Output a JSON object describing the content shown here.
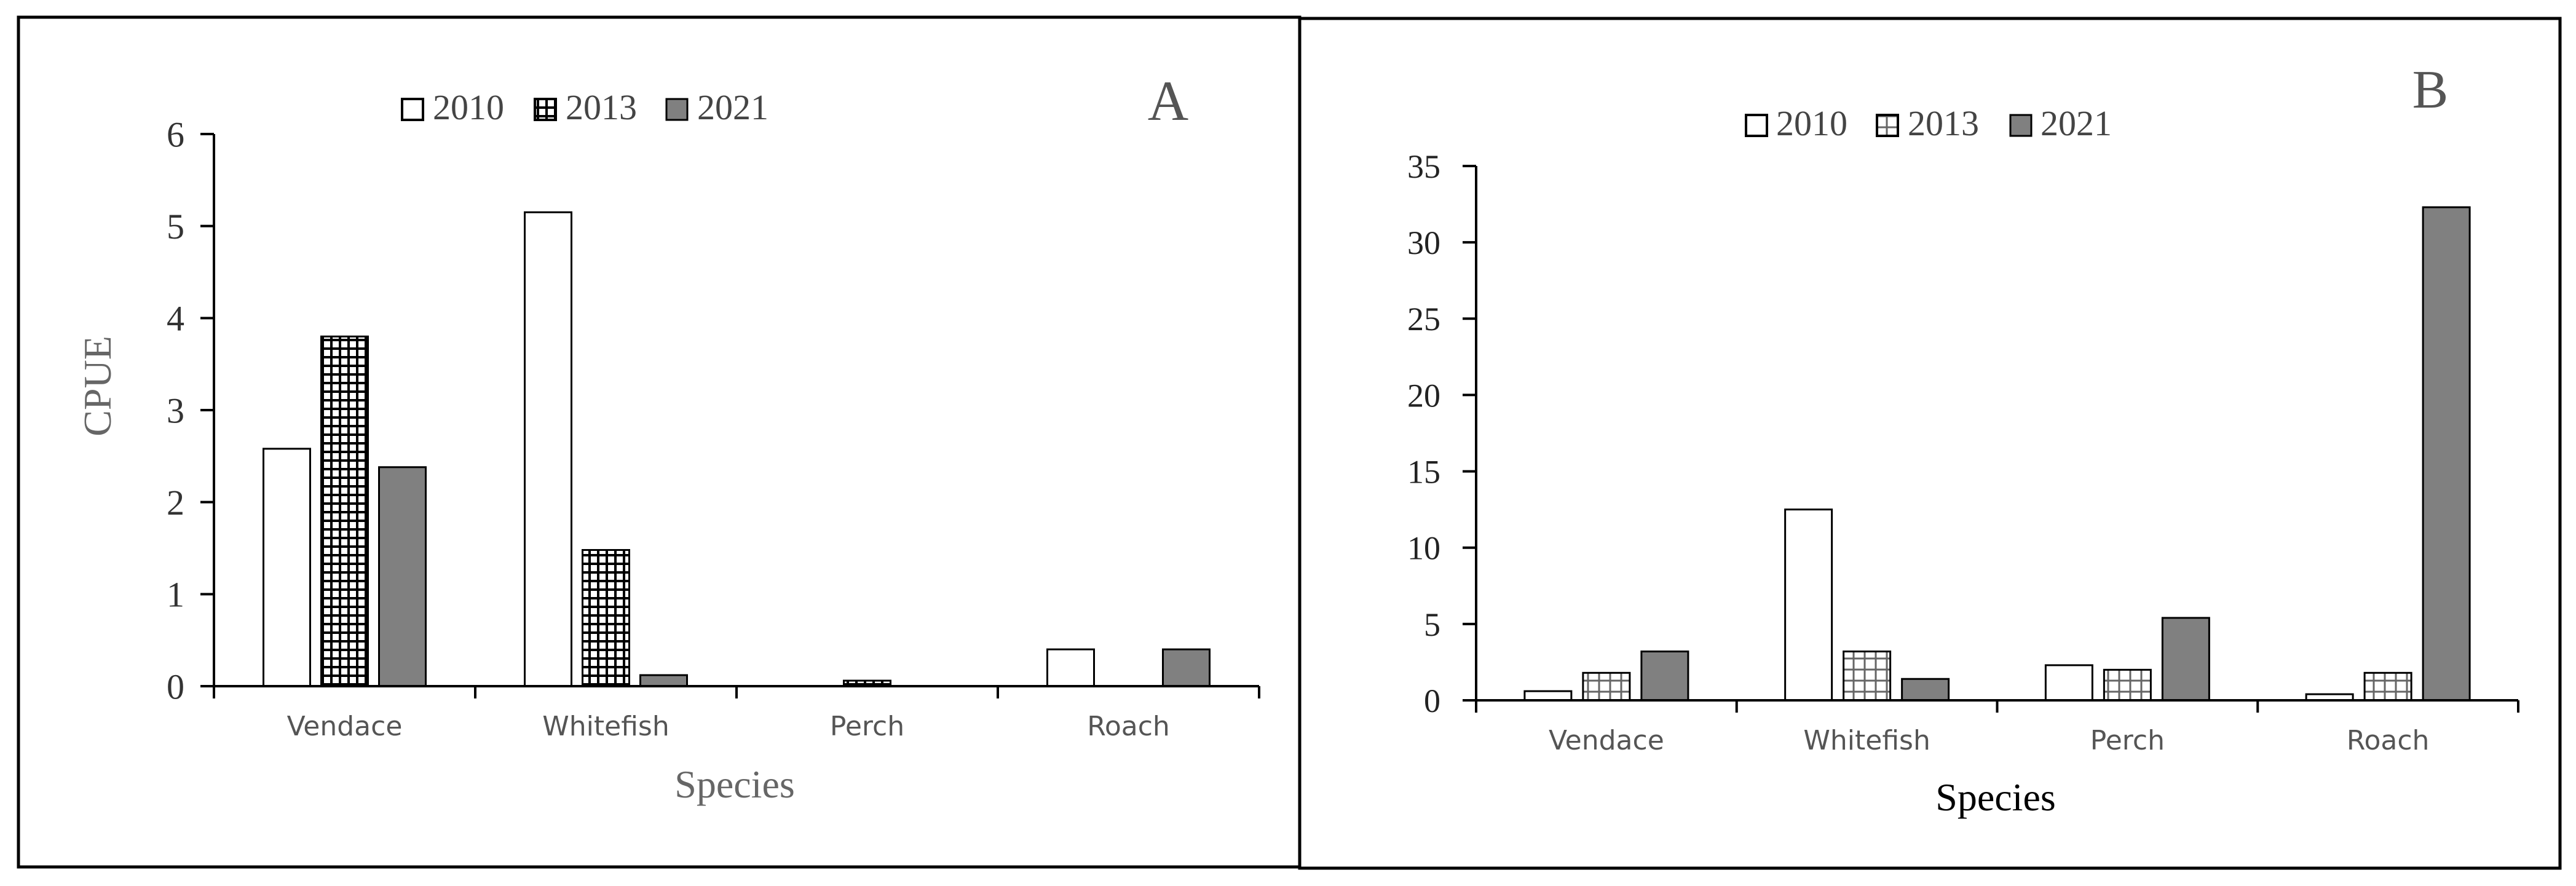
{
  "chart_data": [
    {
      "type": "bar",
      "panel_label": "A",
      "categories": [
        "Vendace",
        "Whitefish",
        "Perch",
        "Roach"
      ],
      "series": [
        {
          "name": "2010",
          "values": [
            2.58,
            5.15,
            0.0,
            0.4
          ]
        },
        {
          "name": "2013",
          "values": [
            3.8,
            1.48,
            0.06,
            0.0
          ]
        },
        {
          "name": "2021",
          "values": [
            2.38,
            0.12,
            0.0,
            0.4
          ]
        }
      ],
      "xlabel": "Species",
      "ylabel": "CPUE",
      "ylim": [
        0,
        6
      ],
      "yticks": [
        "0",
        "1",
        "2",
        "3",
        "4",
        "5",
        "6"
      ],
      "legend": "top",
      "grid": false
    },
    {
      "type": "bar",
      "panel_label": "B",
      "categories": [
        "Vendace",
        "Whitefish",
        "Perch",
        "Roach"
      ],
      "series": [
        {
          "name": "2010",
          "values": [
            0.6,
            12.5,
            2.3,
            0.4
          ]
        },
        {
          "name": "2013",
          "values": [
            1.8,
            3.2,
            2.0,
            1.8
          ]
        },
        {
          "name": "2021",
          "values": [
            3.2,
            1.4,
            5.4,
            32.3
          ]
        }
      ],
      "xlabel": "Species",
      "ylabel": "",
      "ylim": [
        0,
        35
      ],
      "yticks": [
        "0",
        "5",
        "10",
        "15",
        "20",
        "25",
        "30",
        "35"
      ],
      "legend": "top",
      "grid": false
    }
  ],
  "style": {
    "series_fills": [
      "#ffffff",
      "pattern:grid-dense",
      "#808080"
    ],
    "bar_stroke": "#000000",
    "axis_color": "#000000",
    "label_color": "#555555",
    "legend_color": "#444444"
  }
}
